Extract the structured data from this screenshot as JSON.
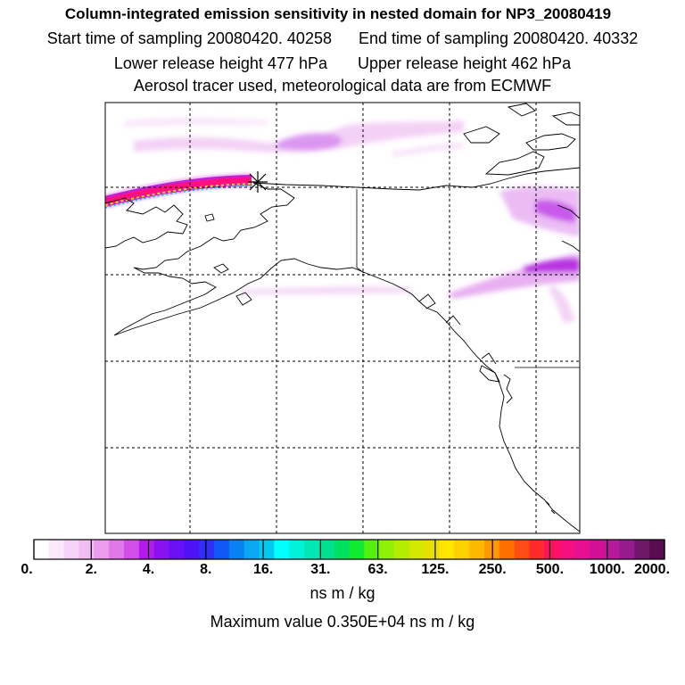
{
  "title": {
    "line1": "Column-integrated emission sensitivity in nested domain for NP3_20080419",
    "start": "Start time of sampling 20080420. 40258",
    "end": "End time of sampling 20080420. 40332",
    "lower": "Lower release height  477 hPa",
    "upper": "Upper release height  462 hPa",
    "line4": "Aerosol tracer used, meteorological data are from ECMWF"
  },
  "colorbar": {
    "labels": [
      "0.",
      "2.",
      "4.",
      "8.",
      "16.",
      "31.",
      "63.",
      "125.",
      "250.",
      "500.",
      "1000.",
      "2000."
    ],
    "colors": [
      "#ffffff",
      "#fbe8fb",
      "#f7d2f7",
      "#f2bdf2",
      "#ec9cec",
      "#e078e8",
      "#d14ee8",
      "#b41aeb",
      "#8a12f0",
      "#6a10f5",
      "#4e12f7",
      "#3030f5",
      "#1058f5",
      "#0a80f5",
      "#0aa8f3",
      "#05c8f0",
      "#00ffff",
      "#00f2d8",
      "#00e8b5",
      "#00e090",
      "#00e060",
      "#10ea30",
      "#55f010",
      "#90f008",
      "#b5ec00",
      "#d5e800",
      "#e8e000",
      "#ffe600",
      "#ffd000",
      "#ffb800",
      "#ff9800",
      "#ff7000",
      "#ff4c14",
      "#ff2a2a",
      "#ff1060",
      "#f51080",
      "#e81090",
      "#d21096",
      "#b8189a",
      "#961c8e",
      "#701868",
      "#5a0c50"
    ],
    "unit": "ns m / kg",
    "max_text": "Maximum value  0.350E+04 ns m / kg"
  },
  "map": {
    "release_marker": "release-point-star-icon",
    "colors": {
      "plume_light": "#f2ccf5",
      "plume_mid": "#d890f0",
      "plume_dark": "#b020e0",
      "trajectory_core": "#ff1080"
    }
  }
}
